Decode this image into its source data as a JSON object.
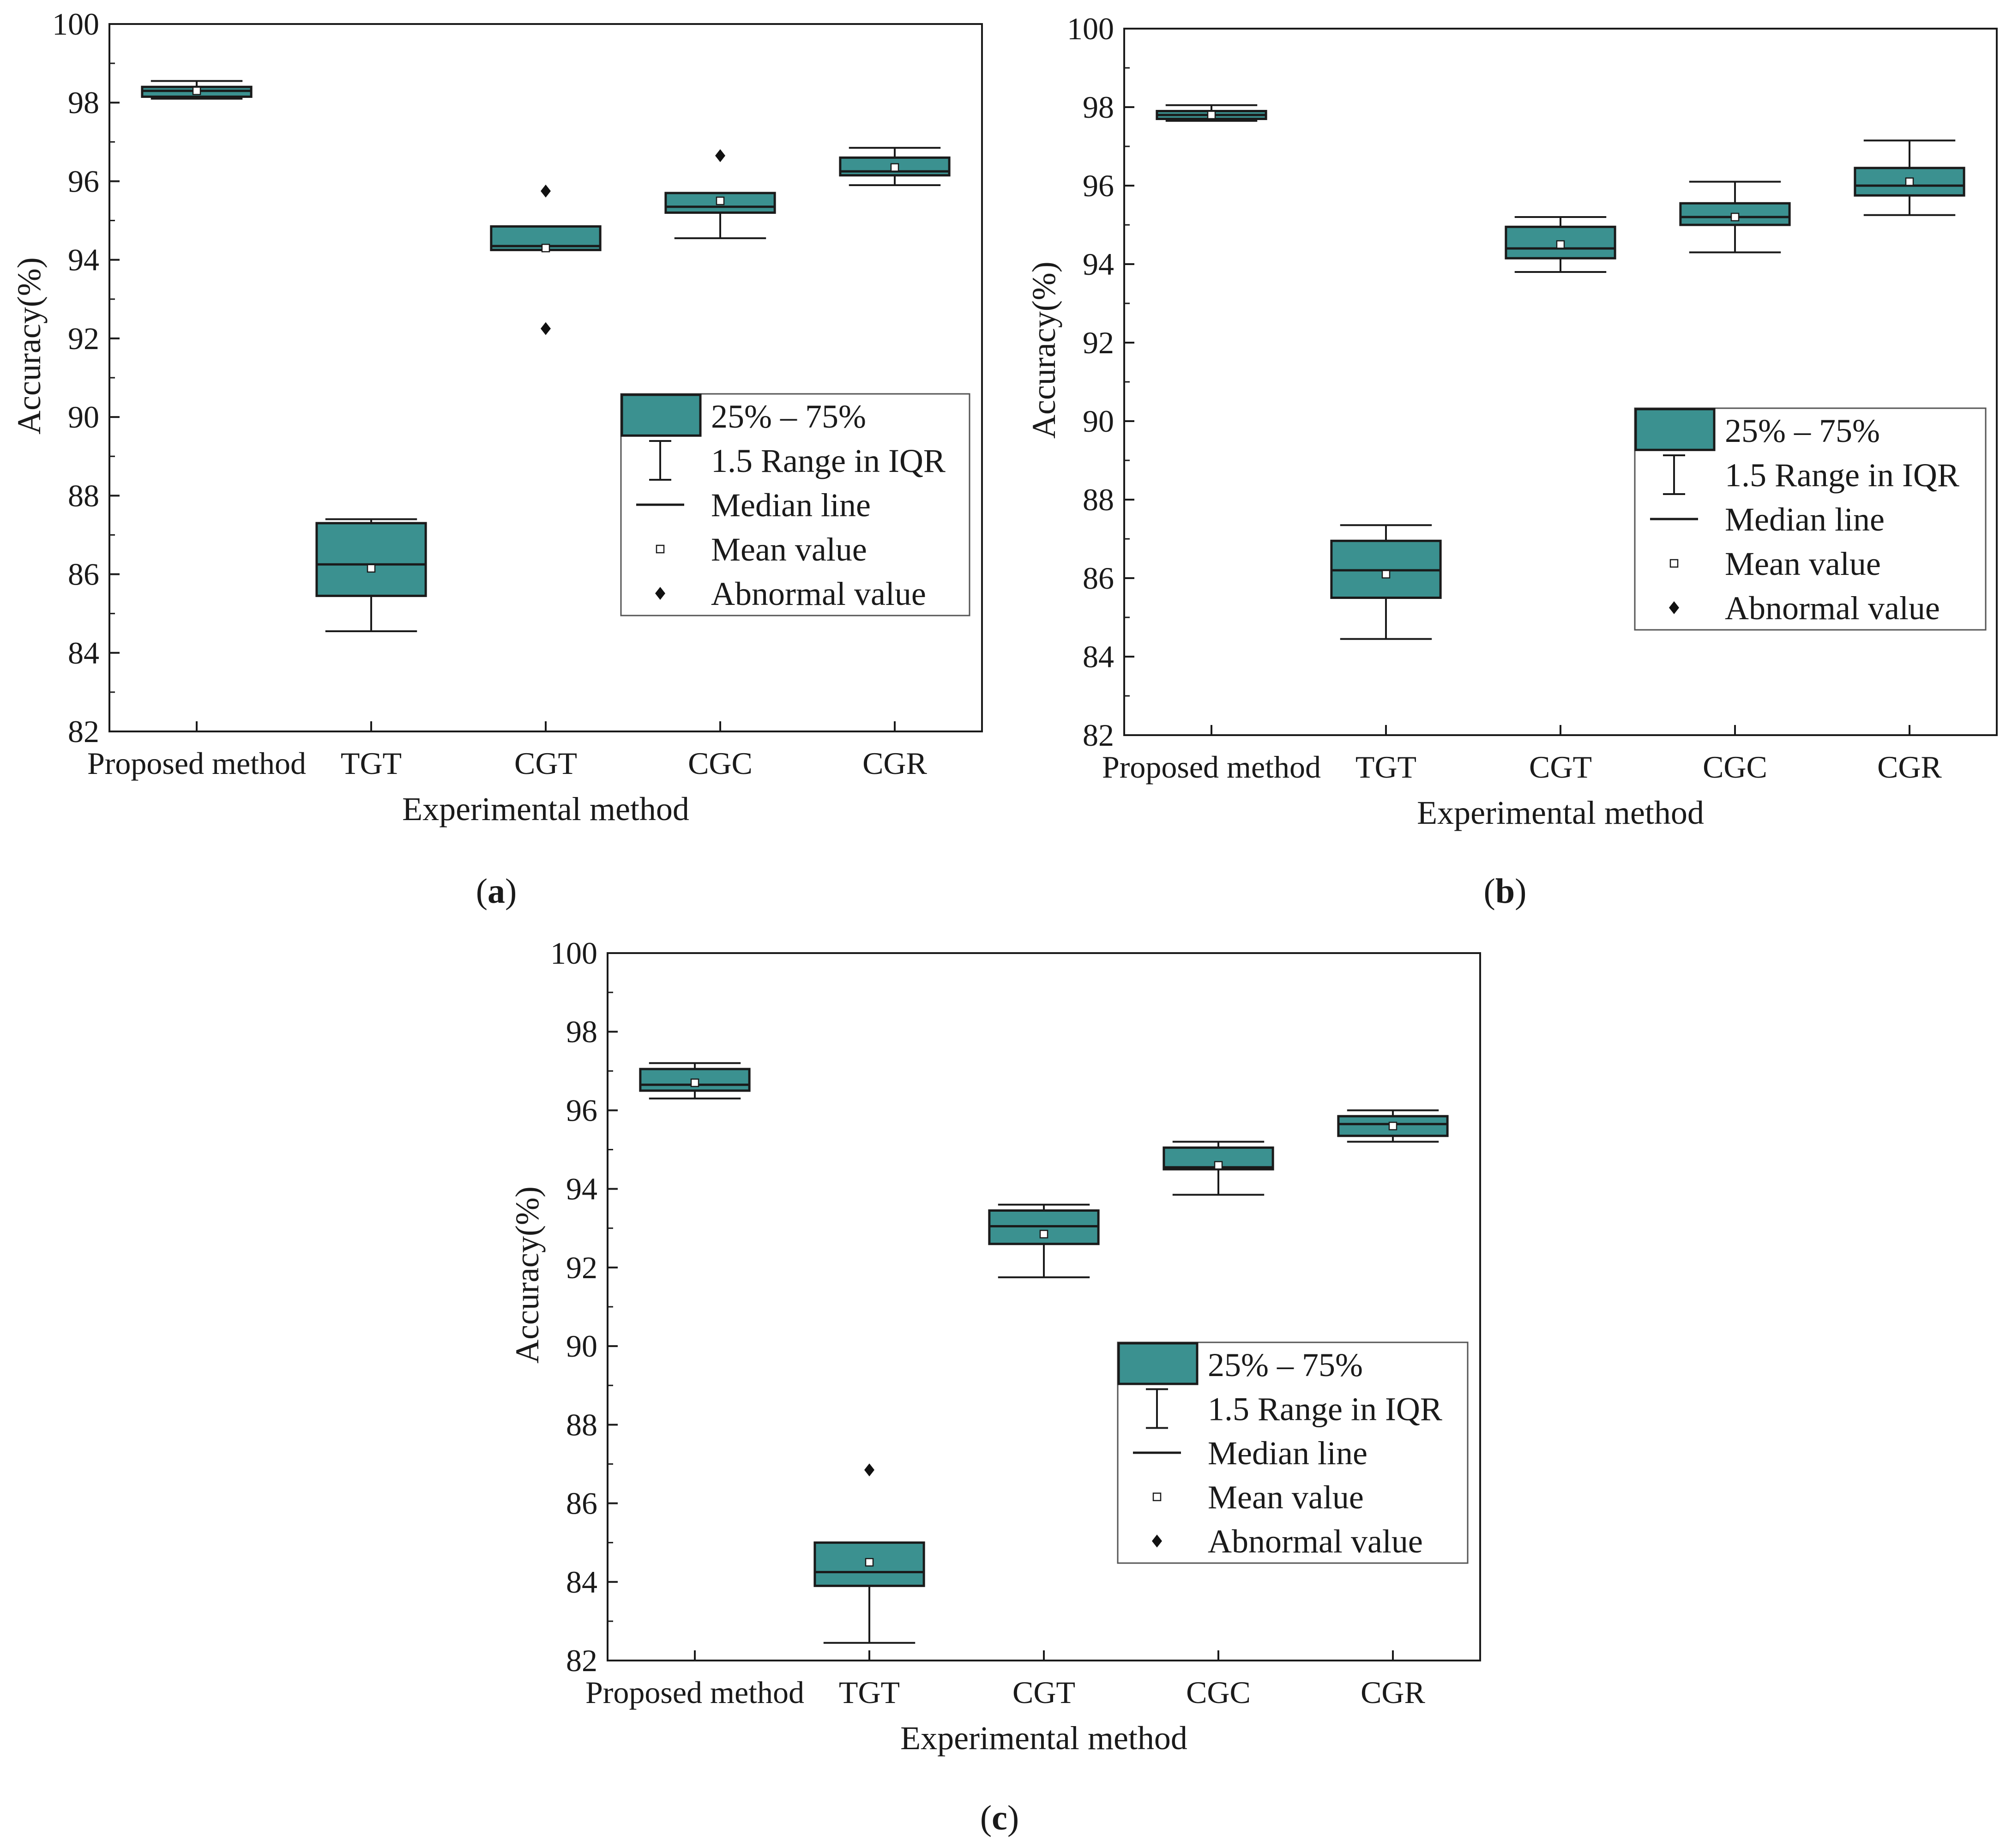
{
  "chart_data": [
    {
      "type": "boxplot",
      "panel_label": {
        "open": "(",
        "letter": "a",
        "close": ")"
      },
      "xlabel": "Experimental method",
      "ylabel": "Accuracy(%)",
      "ylim": [
        82,
        100
      ],
      "yticks": [
        "82",
        "84",
        "86",
        "88",
        "90",
        "92",
        "94",
        "96",
        "98",
        "100"
      ],
      "categories": [
        "Proposed method",
        "TGT",
        "CGT",
        "CGC",
        "CGR"
      ],
      "boxes": [
        {
          "q1": 98.15,
          "median": 98.3,
          "q3": 98.4,
          "whisker_low": 98.1,
          "whisker_high": 98.55,
          "mean": 98.3,
          "outliers": []
        },
        {
          "q1": 85.45,
          "median": 86.25,
          "q3": 87.3,
          "whisker_low": 84.55,
          "whisker_high": 87.4,
          "mean": 86.15,
          "outliers": []
        },
        {
          "q1": 94.25,
          "median": 94.35,
          "q3": 94.85,
          "whisker_low": 94.25,
          "whisker_high": 94.85,
          "mean": 94.3,
          "outliers": [
            95.75,
            92.25
          ]
        },
        {
          "q1": 95.2,
          "median": 95.35,
          "q3": 95.7,
          "whisker_low": 94.55,
          "whisker_high": 95.7,
          "mean": 95.5,
          "outliers": [
            96.65
          ]
        },
        {
          "q1": 96.15,
          "median": 96.25,
          "q3": 96.6,
          "whisker_low": 95.9,
          "whisker_high": 96.85,
          "mean": 96.35,
          "outliers": []
        }
      ]
    },
    {
      "type": "boxplot",
      "panel_label": {
        "open": "(",
        "letter": "b",
        "close": ")"
      },
      "xlabel": "Experimental method",
      "ylabel": "Accuracy(%)",
      "ylim": [
        82,
        100
      ],
      "yticks": [
        "82",
        "84",
        "86",
        "88",
        "90",
        "92",
        "94",
        "96",
        "98",
        "100"
      ],
      "categories": [
        "Proposed method",
        "TGT",
        "CGT",
        "CGC",
        "CGR"
      ],
      "boxes": [
        {
          "q1": 97.7,
          "median": 97.8,
          "q3": 97.9,
          "whisker_low": 97.65,
          "whisker_high": 98.05,
          "mean": 97.8,
          "outliers": []
        },
        {
          "q1": 85.5,
          "median": 86.2,
          "q3": 86.95,
          "whisker_low": 84.45,
          "whisker_high": 87.35,
          "mean": 86.1,
          "outliers": []
        },
        {
          "q1": 94.15,
          "median": 94.4,
          "q3": 94.95,
          "whisker_low": 93.8,
          "whisker_high": 95.2,
          "mean": 94.5,
          "outliers": []
        },
        {
          "q1": 95.0,
          "median": 95.2,
          "q3": 95.55,
          "whisker_low": 94.3,
          "whisker_high": 96.1,
          "mean": 95.2,
          "outliers": []
        },
        {
          "q1": 95.75,
          "median": 96.0,
          "q3": 96.45,
          "whisker_low": 95.25,
          "whisker_high": 97.15,
          "mean": 96.1,
          "outliers": []
        }
      ]
    },
    {
      "type": "boxplot",
      "panel_label": {
        "open": "(",
        "letter": "c",
        "close": ")"
      },
      "xlabel": "Experimental method",
      "ylabel": "Accuracy(%)",
      "ylim": [
        82,
        100
      ],
      "yticks": [
        "82",
        "84",
        "86",
        "88",
        "90",
        "92",
        "94",
        "96",
        "98",
        "100"
      ],
      "categories": [
        "Proposed method",
        "TGT",
        "CGT",
        "CGC",
        "CGR"
      ],
      "boxes": [
        {
          "q1": 96.5,
          "median": 96.65,
          "q3": 97.05,
          "whisker_low": 96.3,
          "whisker_high": 97.2,
          "mean": 96.7,
          "outliers": []
        },
        {
          "q1": 83.9,
          "median": 84.25,
          "q3": 85.0,
          "whisker_low": 82.45,
          "whisker_high": 85.0,
          "mean": 84.5,
          "outliers": [
            86.85
          ]
        },
        {
          "q1": 92.6,
          "median": 93.05,
          "q3": 93.45,
          "whisker_low": 91.75,
          "whisker_high": 93.6,
          "mean": 92.85,
          "outliers": []
        },
        {
          "q1": 94.5,
          "median": 94.55,
          "q3": 95.05,
          "whisker_low": 93.85,
          "whisker_high": 95.2,
          "mean": 94.6,
          "outliers": []
        },
        {
          "q1": 95.35,
          "median": 95.65,
          "q3": 95.85,
          "whisker_low": 95.2,
          "whisker_high": 96.0,
          "mean": 95.6,
          "outliers": []
        }
      ]
    }
  ],
  "legend": {
    "items": [
      "25% – 75%",
      "1.5 Range in IQR",
      "Median line",
      "Mean value",
      "Abnormal value"
    ]
  },
  "colors": {
    "box_fill": "#3b9190",
    "box_stroke": "#1a1a1a",
    "axis": "#1a1a1a",
    "mean_marker_fill": "#ffffff",
    "outlier_fill": "#111111"
  }
}
